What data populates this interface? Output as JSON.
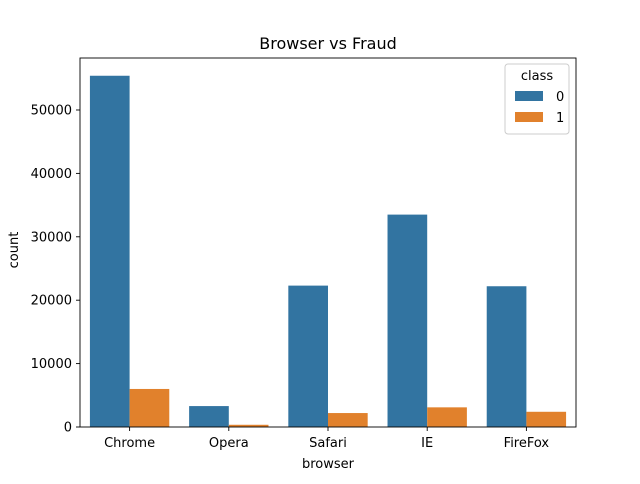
{
  "chart_data": {
    "type": "bar",
    "title": "Browser vs Fraud",
    "xlabel": "browser",
    "ylabel": "count",
    "categories": [
      "Chrome",
      "Opera",
      "Safari",
      "IE",
      "FireFox"
    ],
    "series": [
      {
        "name": "0",
        "values": [
          55400,
          3300,
          22300,
          33500,
          22200
        ],
        "color": "#3274a1"
      },
      {
        "name": "1",
        "values": [
          6000,
          350,
          2200,
          3100,
          2400
        ],
        "color": "#e1812c"
      }
    ],
    "ylim": [
      0,
      58200
    ],
    "yticks": [
      0,
      10000,
      20000,
      30000,
      40000,
      50000
    ],
    "grid": false,
    "legend": {
      "title": "class",
      "placement": "top-right"
    }
  }
}
